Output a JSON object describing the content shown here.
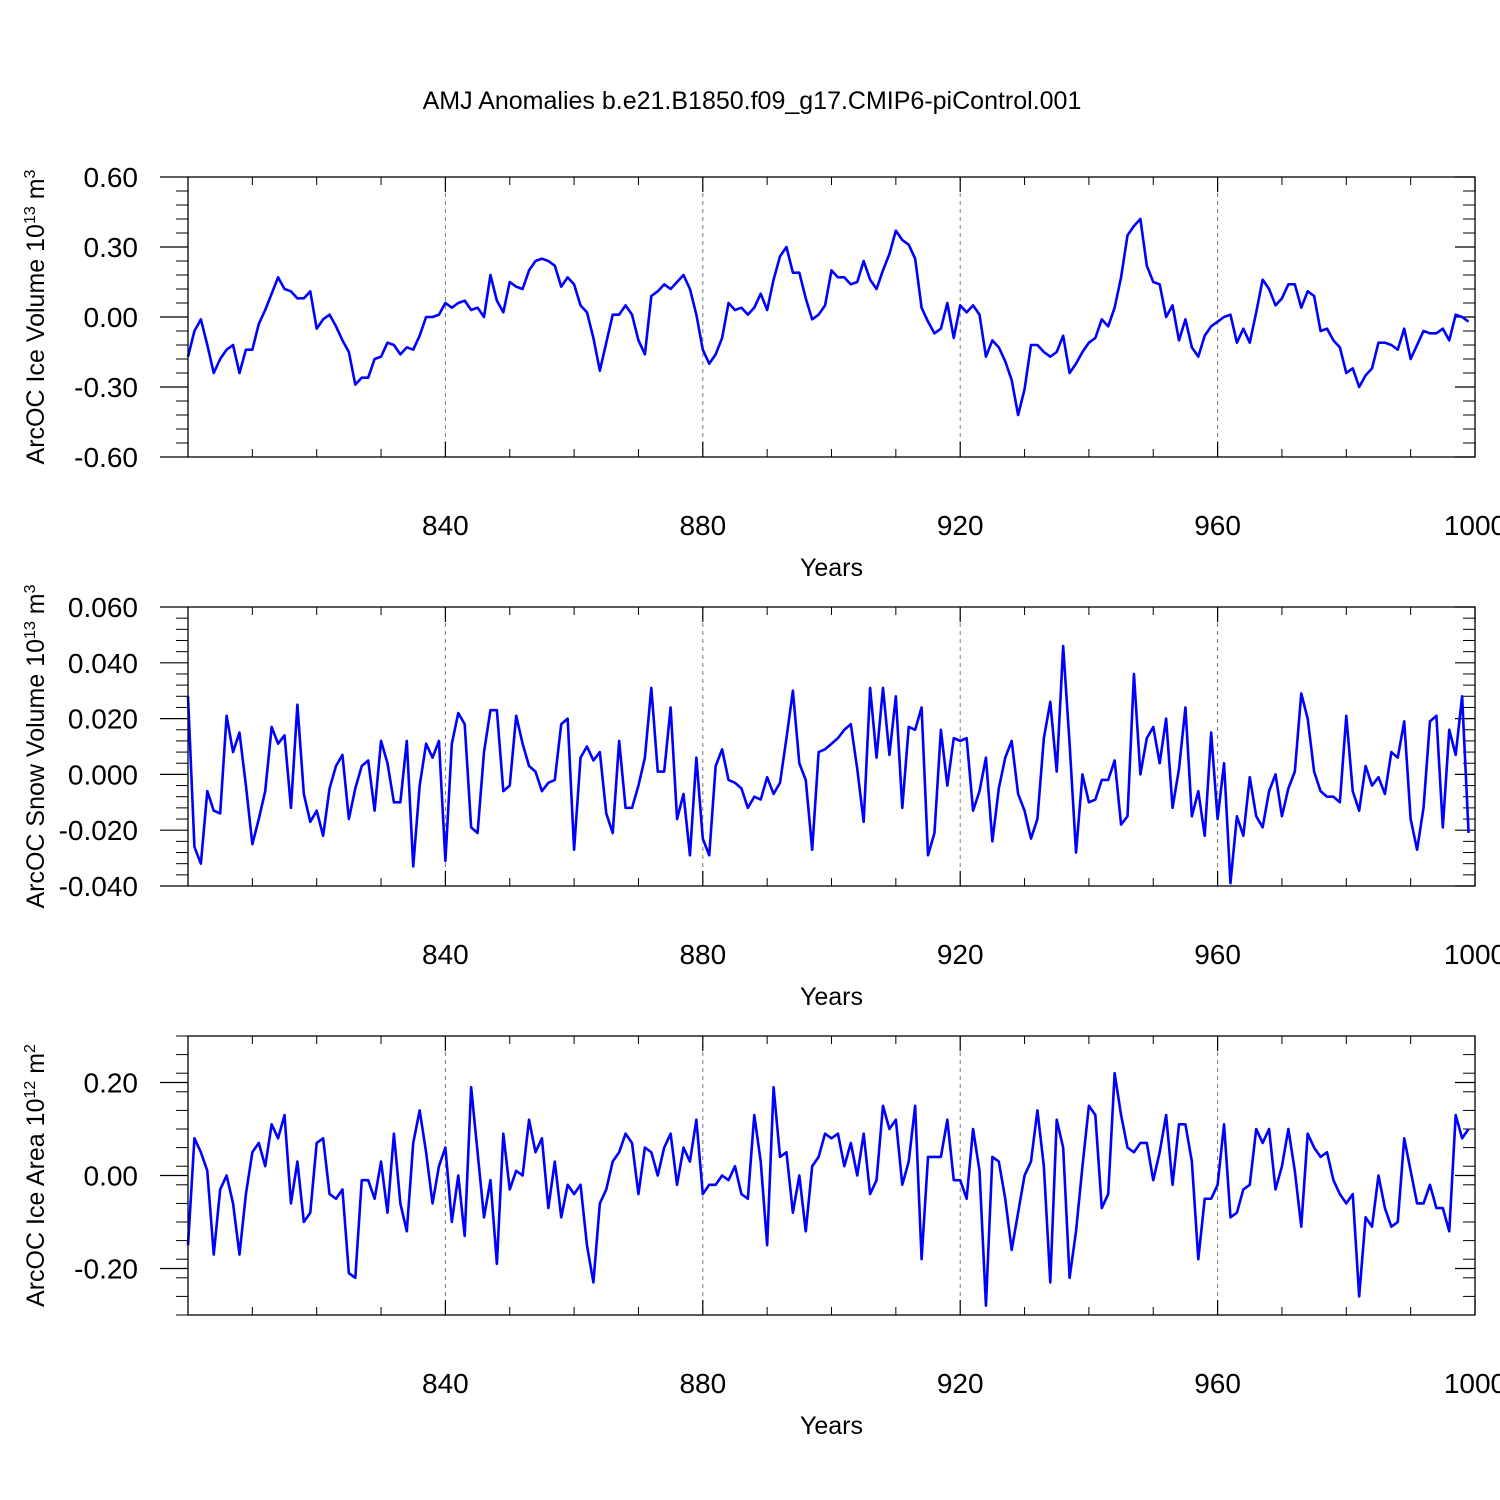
{
  "title": "AMJ Anomalies b.e21.B1850.f09_g17.CMIP6-piControl.001",
  "chart_data": [
    {
      "type": "line",
      "ylabel": {
        "base": "ArcOC Ice Volume 10",
        "exp": "13",
        "unit": " m",
        "unit_exp": "3"
      },
      "xlabel": "Years",
      "xlim": [
        800,
        1000
      ],
      "ylim": [
        -0.6,
        0.6
      ],
      "yticks": [
        -0.6,
        -0.3,
        0.0,
        0.3,
        0.6
      ],
      "ytick_labels": [
        "-0.60",
        "-0.30",
        "0.00",
        "0.30",
        "0.60"
      ],
      "xticks": [
        840,
        880,
        920,
        960,
        1000
      ],
      "xtick_labels": [
        "840",
        "880",
        "920",
        "960",
        "1000"
      ],
      "grid_x": [
        840,
        880,
        920,
        960
      ],
      "line_color": "#0000ff",
      "x_start": 800,
      "values": [
        -0.17,
        -0.06,
        -0.01,
        -0.12,
        -0.24,
        -0.18,
        -0.14,
        -0.12,
        -0.24,
        -0.14,
        -0.14,
        -0.03,
        0.03,
        0.1,
        0.17,
        0.12,
        0.11,
        0.08,
        0.08,
        0.11,
        -0.05,
        -0.01,
        0.01,
        -0.04,
        -0.1,
        -0.15,
        -0.29,
        -0.26,
        -0.26,
        -0.18,
        -0.17,
        -0.11,
        -0.12,
        -0.16,
        -0.13,
        -0.14,
        -0.08,
        0.0,
        0.0,
        0.01,
        0.06,
        0.04,
        0.06,
        0.07,
        0.03,
        0.04,
        0.0,
        0.18,
        0.07,
        0.02,
        0.15,
        0.13,
        0.12,
        0.2,
        0.24,
        0.25,
        0.24,
        0.22,
        0.13,
        0.17,
        0.14,
        0.05,
        0.02,
        -0.09,
        -0.23,
        -0.11,
        0.01,
        0.01,
        0.05,
        0.01,
        -0.1,
        -0.16,
        0.09,
        0.11,
        0.14,
        0.12,
        0.15,
        0.18,
        0.12,
        0.01,
        -0.14,
        -0.2,
        -0.16,
        -0.09,
        0.06,
        0.03,
        0.04,
        0.01,
        0.04,
        0.1,
        0.03,
        0.16,
        0.26,
        0.3,
        0.19,
        0.19,
        0.08,
        -0.01,
        0.01,
        0.05,
        0.2,
        0.17,
        0.17,
        0.14,
        0.15,
        0.24,
        0.16,
        0.12,
        0.2,
        0.27,
        0.37,
        0.33,
        0.31,
        0.25,
        0.04,
        -0.02,
        -0.07,
        -0.05,
        0.06,
        -0.09,
        0.05,
        0.02,
        0.05,
        0.01,
        -0.17,
        -0.1,
        -0.13,
        -0.19,
        -0.27,
        -0.42,
        -0.31,
        -0.12,
        -0.12,
        -0.15,
        -0.17,
        -0.15,
        -0.08,
        -0.24,
        -0.2,
        -0.15,
        -0.11,
        -0.09,
        -0.01,
        -0.04,
        0.04,
        0.17,
        0.35,
        0.39,
        0.42,
        0.22,
        0.15,
        0.14,
        0.0,
        0.05,
        -0.1,
        -0.01,
        -0.13,
        -0.17,
        -0.08,
        -0.04,
        -0.02,
        0.0,
        0.01,
        -0.11,
        -0.05,
        -0.11,
        0.02,
        0.16,
        0.12,
        0.05,
        0.08,
        0.14,
        0.14,
        0.04,
        0.11,
        0.09,
        -0.06,
        -0.05,
        -0.1,
        -0.13,
        -0.24,
        -0.22,
        -0.3,
        -0.25,
        -0.22,
        -0.11,
        -0.11,
        -0.12,
        -0.14,
        -0.05,
        -0.18,
        -0.12,
        -0.06,
        -0.07,
        -0.07,
        -0.05,
        -0.1,
        0.01,
        0.0,
        -0.02
      ]
    },
    {
      "type": "line",
      "ylabel": {
        "base": "ArcOC Snow Volume 10",
        "exp": "13",
        "unit": " m",
        "unit_exp": "3"
      },
      "xlabel": "Years",
      "xlim": [
        800,
        1000
      ],
      "ylim": [
        -0.04,
        0.06
      ],
      "yticks": [
        -0.04,
        -0.02,
        0.0,
        0.02,
        0.04,
        0.06
      ],
      "ytick_labels": [
        "-0.040",
        "-0.020",
        "0.000",
        "0.020",
        "0.040",
        "0.060"
      ],
      "xticks": [
        840,
        880,
        920,
        960,
        1000
      ],
      "xtick_labels": [
        "840",
        "880",
        "920",
        "960",
        "1000"
      ],
      "grid_x": [
        840,
        880,
        920,
        960
      ],
      "line_color": "#0000ff",
      "x_start": 800,
      "values": [
        0.028,
        -0.026,
        -0.032,
        -0.006,
        -0.013,
        -0.014,
        0.021,
        0.008,
        0.015,
        -0.004,
        -0.025,
        -0.016,
        -0.006,
        0.017,
        0.011,
        0.014,
        -0.012,
        0.025,
        -0.007,
        -0.017,
        -0.013,
        -0.022,
        -0.005,
        0.003,
        0.007,
        -0.016,
        -0.005,
        0.003,
        0.005,
        -0.013,
        0.012,
        0.004,
        -0.01,
        -0.01,
        0.012,
        -0.033,
        -0.004,
        0.011,
        0.006,
        0.012,
        -0.031,
        0.011,
        0.022,
        0.018,
        -0.019,
        -0.021,
        0.008,
        0.023,
        0.023,
        -0.006,
        -0.004,
        0.021,
        0.011,
        0.003,
        0.001,
        -0.006,
        -0.003,
        -0.002,
        0.018,
        0.02,
        -0.027,
        0.006,
        0.01,
        0.005,
        0.008,
        -0.014,
        -0.021,
        0.012,
        -0.012,
        -0.012,
        -0.004,
        0.006,
        0.031,
        0.001,
        0.001,
        0.024,
        -0.016,
        -0.007,
        -0.029,
        0.006,
        -0.023,
        -0.029,
        0.003,
        0.009,
        -0.002,
        -0.003,
        -0.005,
        -0.012,
        -0.008,
        -0.009,
        -0.001,
        -0.007,
        -0.003,
        0.013,
        0.03,
        0.004,
        -0.002,
        -0.027,
        0.008,
        0.009,
        0.011,
        0.013,
        0.016,
        0.018,
        0.002,
        -0.017,
        0.031,
        0.006,
        0.031,
        0.007,
        0.028,
        -0.012,
        0.017,
        0.016,
        0.024,
        -0.029,
        -0.021,
        0.016,
        -0.004,
        0.013,
        0.012,
        0.013,
        -0.013,
        -0.006,
        0.006,
        -0.024,
        -0.005,
        0.006,
        0.012,
        -0.007,
        -0.013,
        -0.023,
        -0.016,
        0.013,
        0.026,
        0.001,
        0.046,
        0.011,
        -0.028,
        0.0,
        -0.01,
        -0.009,
        -0.002,
        -0.002,
        0.005,
        -0.018,
        -0.015,
        0.036,
        0.0,
        0.013,
        0.017,
        0.004,
        0.02,
        -0.012,
        0.002,
        0.024,
        -0.015,
        -0.006,
        -0.022,
        0.015,
        -0.016,
        0.004,
        -0.039,
        -0.015,
        -0.022,
        -0.001,
        -0.015,
        -0.019,
        -0.006,
        0.0,
        -0.015,
        -0.005,
        0.001,
        0.029,
        0.02,
        0.001,
        -0.006,
        -0.008,
        -0.008,
        -0.01,
        0.021,
        -0.006,
        -0.013,
        0.003,
        -0.004,
        -0.001,
        -0.007,
        0.008,
        0.006,
        0.019,
        -0.016,
        -0.027,
        -0.012,
        0.019,
        0.021,
        -0.019,
        0.016,
        0.007,
        0.028,
        -0.021
      ]
    },
    {
      "type": "line",
      "ylabel": {
        "base": "ArcOC Ice Area 10",
        "exp": "12",
        "unit": " m",
        "unit_exp": "2"
      },
      "xlabel": "Years",
      "xlim": [
        800,
        1000
      ],
      "ylim": [
        -0.3,
        0.3
      ],
      "yticks": [
        -0.2,
        0.0,
        0.2
      ],
      "ytick_labels": [
        "-0.20",
        "0.00",
        "0.20"
      ],
      "xticks": [
        840,
        880,
        920,
        960,
        1000
      ],
      "xtick_labels": [
        "840",
        "880",
        "920",
        "960",
        "1000"
      ],
      "grid_x": [
        840,
        880,
        920,
        960
      ],
      "line_color": "#0000ff",
      "x_start": 800,
      "values": [
        -0.15,
        0.08,
        0.05,
        0.01,
        -0.17,
        -0.03,
        0.0,
        -0.06,
        -0.17,
        -0.04,
        0.05,
        0.07,
        0.02,
        0.11,
        0.08,
        0.13,
        -0.06,
        0.03,
        -0.1,
        -0.08,
        0.07,
        0.08,
        -0.04,
        -0.05,
        -0.03,
        -0.21,
        -0.22,
        -0.01,
        -0.01,
        -0.05,
        0.03,
        -0.08,
        0.09,
        -0.06,
        -0.12,
        0.07,
        0.14,
        0.05,
        -0.06,
        0.02,
        0.06,
        -0.1,
        0.0,
        -0.13,
        0.19,
        0.05,
        -0.09,
        -0.01,
        -0.19,
        0.09,
        -0.03,
        0.01,
        0.0,
        0.12,
        0.05,
        0.08,
        -0.07,
        0.03,
        -0.09,
        -0.02,
        -0.04,
        -0.02,
        -0.15,
        -0.23,
        -0.06,
        -0.03,
        0.03,
        0.05,
        0.09,
        0.07,
        -0.04,
        0.06,
        0.05,
        0.0,
        0.06,
        0.09,
        -0.02,
        0.06,
        0.03,
        0.12,
        -0.04,
        -0.02,
        -0.02,
        0.0,
        -0.01,
        0.02,
        -0.04,
        -0.05,
        0.13,
        0.03,
        -0.15,
        0.19,
        0.04,
        0.05,
        -0.08,
        0.0,
        -0.12,
        0.02,
        0.04,
        0.09,
        0.08,
        0.09,
        0.02,
        0.07,
        0.0,
        0.09,
        -0.04,
        -0.01,
        0.15,
        0.1,
        0.12,
        -0.02,
        0.03,
        0.15,
        -0.18,
        0.04,
        0.04,
        0.04,
        0.12,
        -0.01,
        -0.01,
        -0.05,
        0.1,
        0.01,
        -0.28,
        0.04,
        0.03,
        -0.05,
        -0.16,
        -0.08,
        0.0,
        0.03,
        0.14,
        0.02,
        -0.23,
        0.12,
        0.06,
        -0.22,
        -0.12,
        0.02,
        0.15,
        0.13,
        -0.07,
        -0.04,
        0.22,
        0.13,
        0.06,
        0.05,
        0.07,
        0.07,
        -0.01,
        0.05,
        0.13,
        -0.02,
        0.11,
        0.11,
        0.03,
        -0.18,
        -0.05,
        -0.05,
        -0.02,
        0.11,
        -0.09,
        -0.08,
        -0.03,
        -0.02,
        0.1,
        0.07,
        0.1,
        -0.03,
        0.02,
        0.1,
        0.01,
        -0.11,
        0.09,
        0.06,
        0.04,
        0.05,
        -0.01,
        -0.04,
        -0.06,
        -0.04,
        -0.26,
        -0.09,
        -0.11,
        0.0,
        -0.07,
        -0.11,
        -0.1,
        0.08,
        0.01,
        -0.06,
        -0.06,
        -0.02,
        -0.07,
        -0.07,
        -0.12,
        0.13,
        0.08,
        0.1
      ]
    }
  ]
}
